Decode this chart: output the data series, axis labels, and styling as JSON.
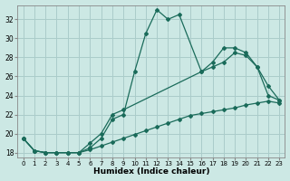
{
  "bg_color": "#cce8e4",
  "grid_color": "#aaccca",
  "line_color": "#1a6b5a",
  "xlabel": "Humidex (Indice chaleur)",
  "xlim": [
    -0.5,
    23.5
  ],
  "ylim": [
    17.5,
    33.5
  ],
  "yticks": [
    18,
    20,
    22,
    24,
    26,
    28,
    30,
    32
  ],
  "xticks": [
    0,
    1,
    2,
    3,
    4,
    5,
    6,
    7,
    8,
    9,
    10,
    11,
    12,
    13,
    14,
    15,
    16,
    17,
    18,
    19,
    20,
    21,
    22,
    23
  ],
  "line1_x": [
    0,
    1,
    2,
    3,
    4,
    5,
    6,
    7,
    8,
    9,
    10,
    11,
    12,
    13,
    14,
    16,
    17,
    18,
    19,
    20,
    21,
    22,
    23
  ],
  "line1_y": [
    19.5,
    18.2,
    18.0,
    18.0,
    18.0,
    18.0,
    18.5,
    19.5,
    21.5,
    22.0,
    26.5,
    30.5,
    33.0,
    32.0,
    32.5,
    26.5,
    27.5,
    29.0,
    29.0,
    28.5,
    27.0,
    24.0,
    23.5
  ],
  "line2_x": [
    0,
    1,
    2,
    3,
    4,
    5,
    6,
    7,
    8,
    9,
    16,
    17,
    18,
    19,
    20,
    21,
    22,
    23
  ],
  "line2_y": [
    19.5,
    18.2,
    18.0,
    18.0,
    18.0,
    18.0,
    19.0,
    20.0,
    22.0,
    22.5,
    26.5,
    27.0,
    27.5,
    28.5,
    28.2,
    27.0,
    25.0,
    23.5
  ],
  "line3_x": [
    0,
    1,
    2,
    3,
    4,
    5,
    6,
    7,
    8,
    9,
    10,
    11,
    12,
    13,
    14,
    15,
    16,
    17,
    18,
    19,
    20,
    21,
    22,
    23
  ],
  "line3_y": [
    19.5,
    18.2,
    18.0,
    18.0,
    18.0,
    18.0,
    18.3,
    18.7,
    19.1,
    19.5,
    19.9,
    20.3,
    20.7,
    21.1,
    21.5,
    21.9,
    22.1,
    22.3,
    22.5,
    22.7,
    23.0,
    23.2,
    23.4,
    23.2
  ]
}
